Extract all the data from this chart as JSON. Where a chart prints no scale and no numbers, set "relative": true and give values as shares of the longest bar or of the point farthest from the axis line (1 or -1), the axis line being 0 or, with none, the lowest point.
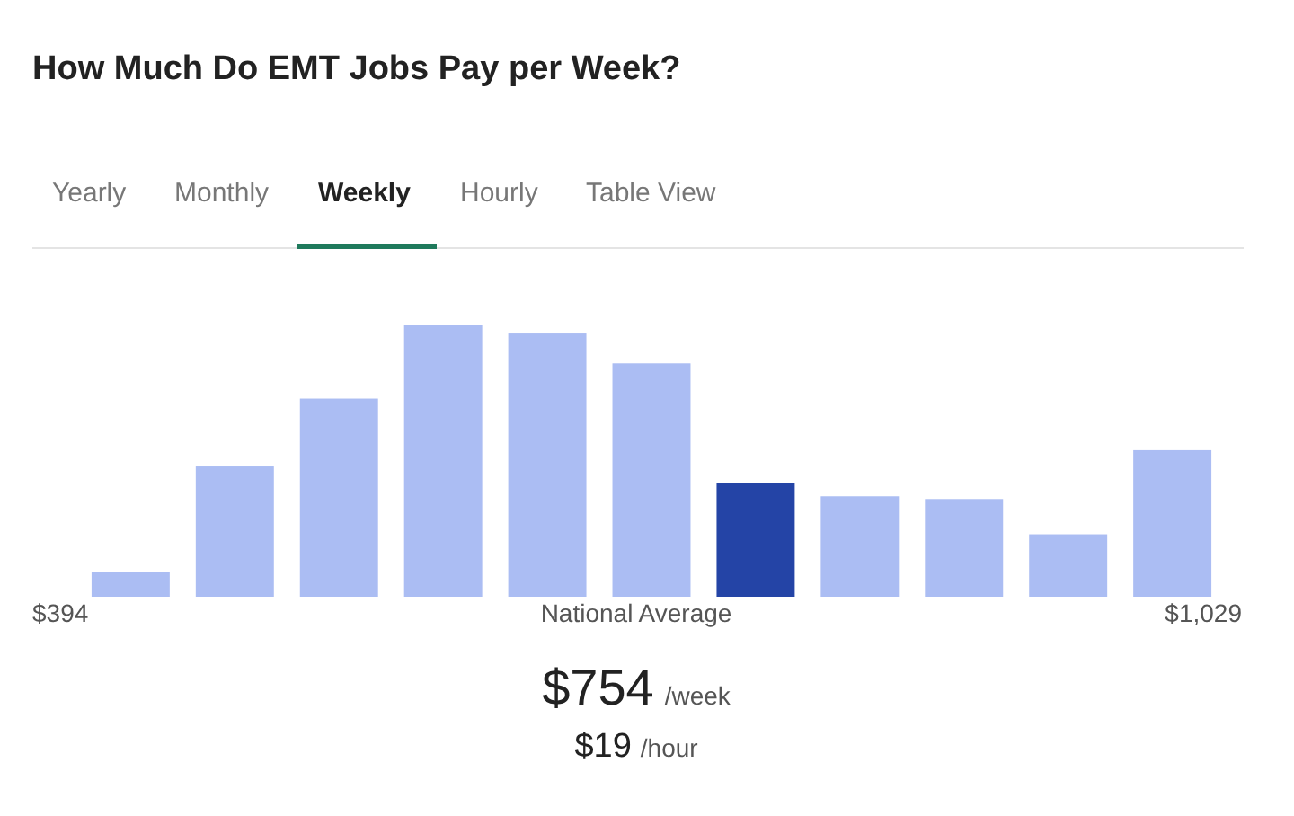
{
  "chart_data": {
    "type": "bar",
    "title": "How Much Do EMT Jobs Pay per Week?",
    "relative": true,
    "categories": [
      null,
      null,
      null,
      null,
      null,
      null,
      null,
      null,
      null,
      null,
      null
    ],
    "values": [
      0.09,
      0.48,
      0.73,
      1,
      0.97,
      0.86,
      0.42,
      0.37,
      0.36,
      0.23,
      0.54
    ],
    "colors": [
      "#abbdf3",
      "#abbdf3",
      "#abbdf3",
      "#abbdf3",
      "#abbdf3",
      "#abbdf3",
      "#2444a6",
      "#abbdf3",
      "#abbdf3",
      "#abbdf3",
      "#abbdf3"
    ],
    "annotations": [
      "Yearly",
      "Monthly",
      "Weekly",
      "Hourly",
      "Table View",
      "$394",
      "National Average",
      "$1,029",
      "$754",
      "/week",
      "$19",
      "/hour"
    ]
  }
}
